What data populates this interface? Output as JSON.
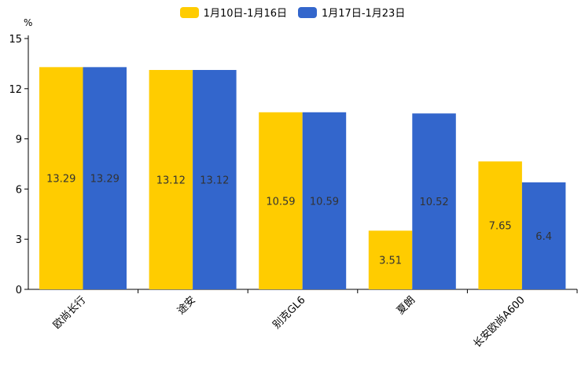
{
  "chart_data": {
    "type": "bar",
    "title": "",
    "ylabel": "%",
    "xlabel": "",
    "ylim": [
      0,
      15
    ],
    "yticks": [
      0,
      3,
      6,
      9,
      12,
      15
    ],
    "grid": false,
    "legend_position": "top-center",
    "categories": [
      "欧尚长行",
      "途安",
      "别克GL6",
      "夏朗",
      "长安欧尚A600"
    ],
    "series": [
      {
        "name": "1月10日-1月16日",
        "color": "#FFCC00",
        "values": [
          13.29,
          13.12,
          10.59,
          3.51,
          7.65
        ]
      },
      {
        "name": "1月17日-1月23日",
        "color": "#3366CC",
        "values": [
          13.29,
          13.12,
          10.59,
          10.52,
          6.4
        ]
      }
    ]
  }
}
